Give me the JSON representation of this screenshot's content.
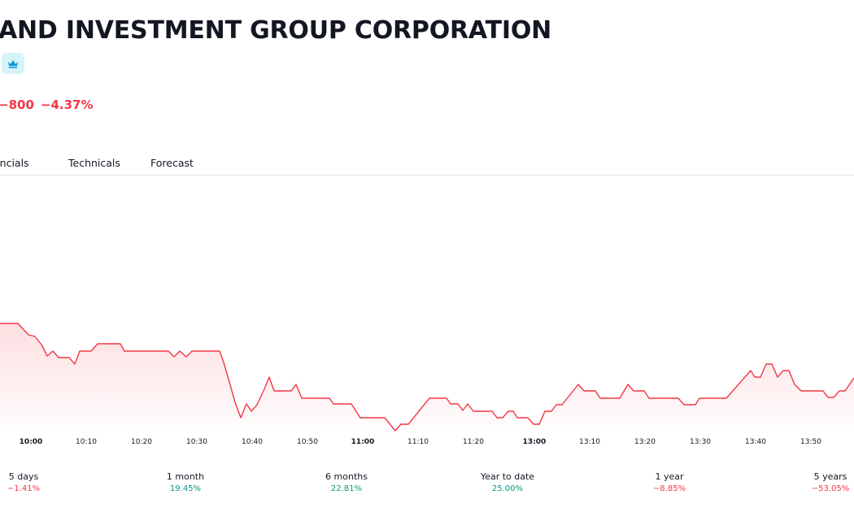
{
  "header": {
    "title": "AND INVESTMENT GROUP CORPORATION",
    "price_change": "−800",
    "percent_change": "−4.37%",
    "badge_icon": "crown-icon"
  },
  "tabs": [
    {
      "label": "ancials"
    },
    {
      "label": "Technicals"
    },
    {
      "label": "Forecast"
    }
  ],
  "time_axis": {
    "labels": [
      "10:00",
      "10:10",
      "10:20",
      "10:30",
      "10:40",
      "10:50",
      "11:00",
      "11:10",
      "11:20",
      "13:00",
      "13:10",
      "13:20",
      "13:30",
      "13:40",
      "13:50"
    ],
    "bold_labels": [
      "10:00",
      "11:00",
      "13:00"
    ]
  },
  "periods": [
    {
      "label": "5 days",
      "value": "−1.41%",
      "trend": "neg"
    },
    {
      "label": "1 month",
      "value": "19.45%",
      "trend": "pos"
    },
    {
      "label": "6 months",
      "value": "22.81%",
      "trend": "pos"
    },
    {
      "label": "Year to date",
      "value": "25.00%",
      "trend": "pos"
    },
    {
      "label": "1 year",
      "value": "−8.85%",
      "trend": "neg"
    },
    {
      "label": "5 years",
      "value": "−53.05%",
      "trend": "neg"
    }
  ],
  "colors": {
    "line": "#f23645",
    "negative": "#f23645",
    "positive": "#089981",
    "badge_bg": "#d6f3f8",
    "badge_icon": "#0099d6"
  }
}
